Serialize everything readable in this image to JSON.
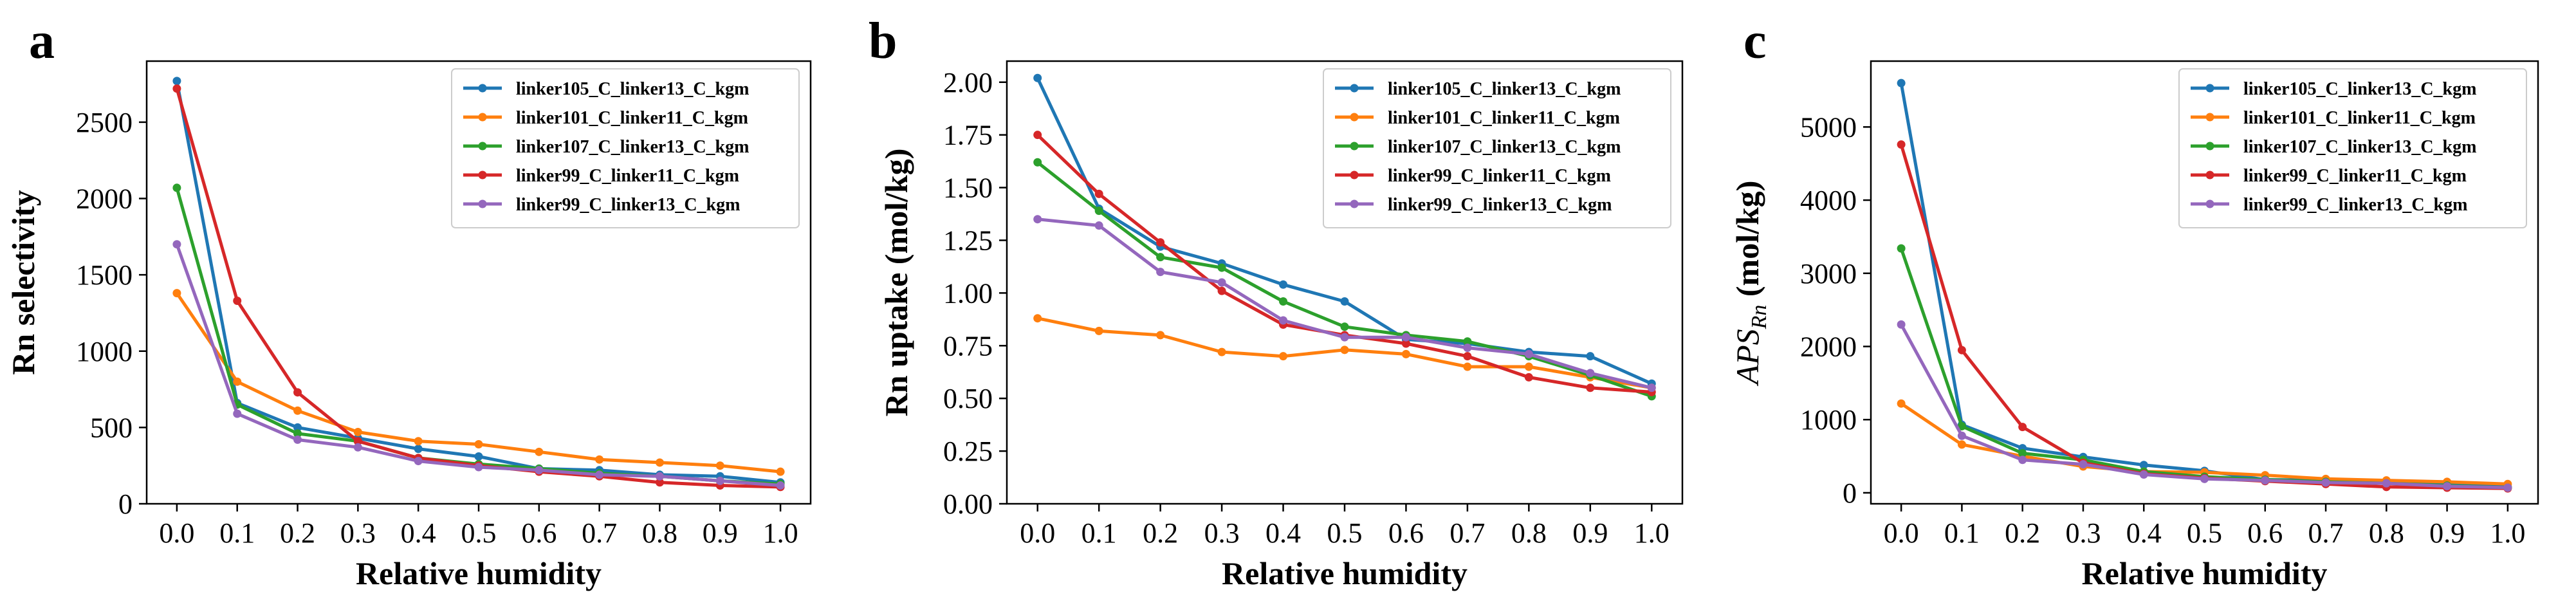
{
  "chart_data": [
    {
      "type": "line",
      "panel_label": "a",
      "xlabel": "Relative humidity",
      "ylabel": "Rn selectivity",
      "ylabel_sub": "",
      "xlim": [
        -0.05,
        1.05
      ],
      "ylim": [
        0,
        2900
      ],
      "xticks": [
        0.0,
        0.1,
        0.2,
        0.3,
        0.4,
        0.5,
        0.6,
        0.7,
        0.8,
        0.9,
        1.0
      ],
      "xtick_labels": [
        "0.0",
        "0.1",
        "0.2",
        "0.3",
        "0.4",
        "0.5",
        "0.6",
        "0.7",
        "0.8",
        "0.9",
        "1.0"
      ],
      "yticks": [
        0,
        500,
        1000,
        1500,
        2000,
        2500
      ],
      "ytick_labels": [
        "0",
        "500",
        "1000",
        "1500",
        "2000",
        "2500"
      ],
      "legend_position": "top-right",
      "x": [
        0.0,
        0.1,
        0.2,
        0.3,
        0.4,
        0.5,
        0.6,
        0.7,
        0.8,
        0.9,
        1.0
      ],
      "series": [
        {
          "name": "linker105_C_linker13_C_kgm",
          "color": "#1f77b4",
          "values": [
            2770,
            660,
            500,
            430,
            360,
            310,
            230,
            220,
            190,
            180,
            140
          ]
        },
        {
          "name": "linker101_C_linker11_C_kgm",
          "color": "#ff7f0e",
          "values": [
            1380,
            800,
            610,
            470,
            410,
            390,
            340,
            290,
            270,
            250,
            210
          ]
        },
        {
          "name": "linker107_C_linker13_C_kgm",
          "color": "#2ca02c",
          "values": [
            2070,
            650,
            460,
            410,
            300,
            260,
            230,
            200,
            180,
            150,
            130
          ]
        },
        {
          "name": "linker99_C_linker11_C_kgm",
          "color": "#d62728",
          "values": [
            2720,
            1330,
            730,
            410,
            300,
            250,
            210,
            180,
            140,
            120,
            110
          ]
        },
        {
          "name": "linker99_C_linker13_C_kgm",
          "color": "#9467bd",
          "values": [
            1700,
            590,
            420,
            370,
            280,
            240,
            220,
            190,
            180,
            150,
            120
          ]
        }
      ]
    },
    {
      "type": "line",
      "panel_label": "b",
      "xlabel": "Relative humidity",
      "ylabel": "Rn uptake (mol/kg)",
      "ylabel_sub": "",
      "xlim": [
        -0.05,
        1.05
      ],
      "ylim": [
        0,
        2.1
      ],
      "xticks": [
        0.0,
        0.1,
        0.2,
        0.3,
        0.4,
        0.5,
        0.6,
        0.7,
        0.8,
        0.9,
        1.0
      ],
      "xtick_labels": [
        "0.0",
        "0.1",
        "0.2",
        "0.3",
        "0.4",
        "0.5",
        "0.6",
        "0.7",
        "0.8",
        "0.9",
        "1.0"
      ],
      "yticks": [
        0.0,
        0.25,
        0.5,
        0.75,
        1.0,
        1.25,
        1.5,
        1.75,
        2.0
      ],
      "ytick_labels": [
        "0.00",
        "0.25",
        "0.50",
        "0.75",
        "1.00",
        "1.25",
        "1.50",
        "1.75",
        "2.00"
      ],
      "legend_position": "top-right",
      "x": [
        0.0,
        0.1,
        0.2,
        0.3,
        0.4,
        0.5,
        0.6,
        0.7,
        0.8,
        0.9,
        1.0
      ],
      "series": [
        {
          "name": "linker105_C_linker13_C_kgm",
          "color": "#1f77b4",
          "values": [
            2.02,
            1.4,
            1.22,
            1.14,
            1.04,
            0.96,
            0.78,
            0.76,
            0.72,
            0.7,
            0.57
          ]
        },
        {
          "name": "linker101_C_linker11_C_kgm",
          "color": "#ff7f0e",
          "values": [
            0.88,
            0.82,
            0.8,
            0.72,
            0.7,
            0.73,
            0.71,
            0.65,
            0.65,
            0.6,
            0.55
          ]
        },
        {
          "name": "linker107_C_linker13_C_kgm",
          "color": "#2ca02c",
          "values": [
            1.62,
            1.39,
            1.17,
            1.12,
            0.96,
            0.84,
            0.8,
            0.77,
            0.7,
            0.61,
            0.51
          ]
        },
        {
          "name": "linker99_C_linker11_C_kgm",
          "color": "#d62728",
          "values": [
            1.75,
            1.47,
            1.24,
            1.01,
            0.85,
            0.8,
            0.76,
            0.7,
            0.6,
            0.55,
            0.53
          ]
        },
        {
          "name": "linker99_C_linker13_C_kgm",
          "color": "#9467bd",
          "values": [
            1.35,
            1.32,
            1.1,
            1.05,
            0.87,
            0.79,
            0.79,
            0.74,
            0.71,
            0.62,
            0.55
          ]
        }
      ]
    },
    {
      "type": "line",
      "panel_label": "c",
      "xlabel": "Relative humidity",
      "ylabel": "APS",
      "ylabel_sub": "Rn",
      "ylabel_suffix": " (mol/kg)",
      "xlim": [
        -0.05,
        1.05
      ],
      "ylim": [
        -150,
        5900
      ],
      "xticks": [
        0.0,
        0.1,
        0.2,
        0.3,
        0.4,
        0.5,
        0.6,
        0.7,
        0.8,
        0.9,
        1.0
      ],
      "xtick_labels": [
        "0.0",
        "0.1",
        "0.2",
        "0.3",
        "0.4",
        "0.5",
        "0.6",
        "0.7",
        "0.8",
        "0.9",
        "1.0"
      ],
      "yticks": [
        0,
        1000,
        2000,
        3000,
        4000,
        5000
      ],
      "ytick_labels": [
        "0",
        "1000",
        "2000",
        "3000",
        "4000",
        "5000"
      ],
      "legend_position": "top-right",
      "x": [
        0.0,
        0.1,
        0.2,
        0.3,
        0.4,
        0.5,
        0.6,
        0.7,
        0.8,
        0.9,
        1.0
      ],
      "series": [
        {
          "name": "linker105_C_linker13_C_kgm",
          "color": "#1f77b4",
          "values": [
            5600,
            930,
            610,
            490,
            380,
            300,
            180,
            170,
            140,
            130,
            80
          ]
        },
        {
          "name": "linker101_C_linker11_C_kgm",
          "color": "#ff7f0e",
          "values": [
            1220,
            660,
            500,
            360,
            290,
            280,
            240,
            190,
            170,
            150,
            120
          ]
        },
        {
          "name": "linker107_C_linker13_C_kgm",
          "color": "#2ca02c",
          "values": [
            3340,
            910,
            540,
            450,
            290,
            220,
            180,
            150,
            130,
            100,
            70
          ]
        },
        {
          "name": "linker99_C_linker11_C_kgm",
          "color": "#d62728",
          "values": [
            4760,
            1950,
            900,
            410,
            260,
            200,
            160,
            120,
            80,
            70,
            60
          ]
        },
        {
          "name": "linker99_C_linker13_C_kgm",
          "color": "#9467bd",
          "values": [
            2300,
            780,
            450,
            390,
            250,
            190,
            170,
            140,
            130,
            90,
            70
          ]
        }
      ]
    }
  ]
}
